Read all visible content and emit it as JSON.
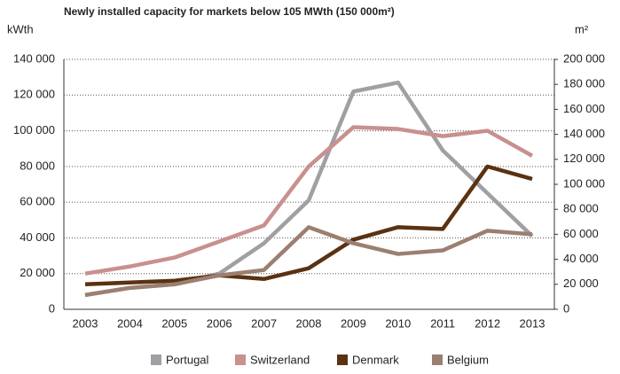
{
  "chart_data": {
    "type": "line",
    "title": "Newly installed capacity for markets below 105 MWth (150 000m²)",
    "ylabel": "kWth",
    "y2label": "m²",
    "categories": [
      "2003",
      "2004",
      "2005",
      "2006",
      "2007",
      "2008",
      "2009",
      "2010",
      "2011",
      "2012",
      "2013"
    ],
    "series": [
      {
        "name": "Portugal",
        "color": "#a0a0a4",
        "values": [
          8000,
          12000,
          14000,
          20000,
          37000,
          61000,
          122000,
          127000,
          89000,
          65000,
          41000
        ]
      },
      {
        "name": "Switzerland",
        "color": "#c8908e",
        "values": [
          20000,
          24000,
          29000,
          38000,
          47000,
          80000,
          102000,
          101000,
          97000,
          100000,
          86000
        ]
      },
      {
        "name": "Denmark",
        "color": "#5a3212",
        "values": [
          14000,
          15000,
          16000,
          19000,
          17000,
          23000,
          39000,
          46000,
          45000,
          80000,
          73000
        ]
      },
      {
        "name": "Belgium",
        "color": "#9b7f70",
        "values": [
          8000,
          12000,
          14000,
          19000,
          22000,
          46000,
          37000,
          31000,
          33000,
          44000,
          42000
        ]
      }
    ],
    "ylim": [
      0,
      140000
    ],
    "yticks": [
      0,
      {
        "value": 20000,
        "label": "20 000"
      },
      {
        "value": 40000,
        "label": "40 000"
      },
      {
        "value": 60000,
        "label": "60 000"
      },
      {
        "value": 80000,
        "label": "80 000"
      },
      {
        "value": 100000,
        "label": "100 000"
      },
      {
        "value": 120000,
        "label": "120 000"
      },
      {
        "value": 140000,
        "label": "140 000"
      }
    ],
    "y2lim": [
      0,
      200000
    ],
    "y2ticks": [
      0,
      {
        "value": 20000,
        "label": "20 000"
      },
      {
        "value": 40000,
        "label": "40 000"
      },
      {
        "value": 60000,
        "label": "60 000"
      },
      {
        "value": 80000,
        "label": "80 000"
      },
      {
        "value": 100000,
        "label": "100 000"
      },
      {
        "value": 120000,
        "label": "120 000"
      },
      {
        "value": 140000,
        "label": "140 000"
      },
      {
        "value": 160000,
        "label": "160 000"
      },
      {
        "value": 180000,
        "label": "180 000"
      },
      {
        "value": 200000,
        "label": "200 000"
      }
    ],
    "grid": true,
    "legend": "bottom"
  }
}
